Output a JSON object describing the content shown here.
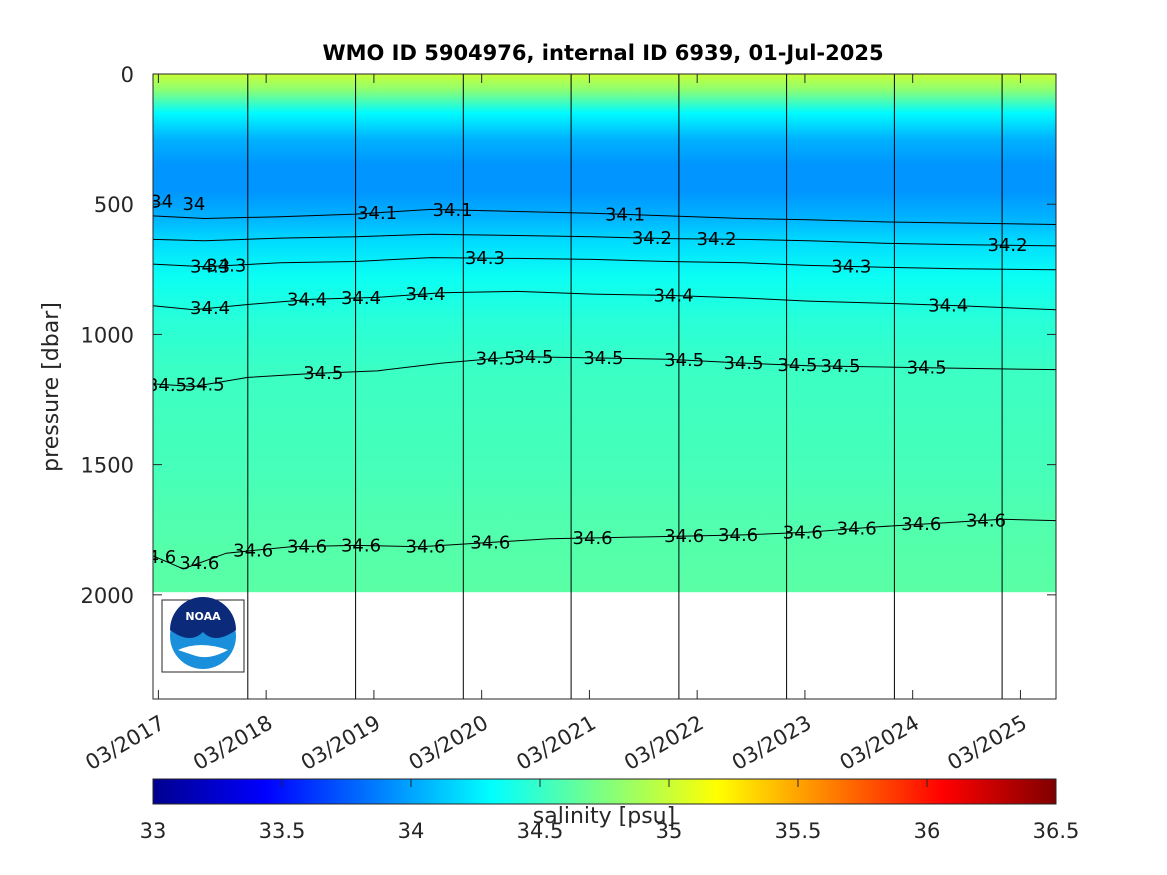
{
  "chart_data": {
    "type": "heatmap",
    "title": "WMO ID 5904976, internal ID 6939, 01-Jul-2025",
    "xlabel": "",
    "ylabel": "pressure [dbar]",
    "x_tick_labels": [
      "03/2017",
      "03/2018",
      "03/2019",
      "03/2020",
      "03/2021",
      "03/2022",
      "03/2023",
      "03/2024",
      "03/2025"
    ],
    "x_ticks_years": [
      2017.17,
      2018.17,
      2019.17,
      2020.17,
      2021.17,
      2022.17,
      2023.17,
      2024.17,
      2025.17
    ],
    "xlim": [
      2017.12,
      2025.5
    ],
    "y_tick_labels": [
      "0",
      "500",
      "1000",
      "1500",
      "2000"
    ],
    "y_ticks": [
      0,
      500,
      1000,
      1500,
      2000
    ],
    "ylim": [
      0,
      2400
    ],
    "y_reversed": true,
    "colorbar": {
      "label": "salinity [psu]",
      "range": [
        33,
        36.5
      ],
      "ticks": [
        33,
        33.5,
        34,
        34.5,
        35,
        35.5,
        36,
        36.5
      ],
      "tick_labels": [
        "33",
        "33.5",
        "34",
        "34.5",
        "35",
        "35.5",
        "36",
        "36.5"
      ],
      "colormap": "jet"
    },
    "max_profile_pressure": 1990,
    "profile_markers_years": [
      2018.0,
      2019.0,
      2020.0,
      2021.0,
      2022.0,
      2023.0,
      2024.0,
      2025.0
    ],
    "salinity_profile": [
      {
        "p": 0,
        "s": 35.0
      },
      {
        "p": 60,
        "s": 34.8
      },
      {
        "p": 150,
        "s": 34.3
      },
      {
        "p": 250,
        "s": 34.05
      },
      {
        "p": 350,
        "s": 33.95
      },
      {
        "p": 450,
        "s": 33.95
      },
      {
        "p": 550,
        "s": 34.05
      },
      {
        "p": 650,
        "s": 34.2
      },
      {
        "p": 780,
        "s": 34.35
      },
      {
        "p": 950,
        "s": 34.45
      },
      {
        "p": 1150,
        "s": 34.52
      },
      {
        "p": 1500,
        "s": 34.55
      },
      {
        "p": 1800,
        "s": 34.6
      },
      {
        "p": 2000,
        "s": 34.62
      }
    ],
    "contours": [
      {
        "level": "34.1",
        "points": [
          [
            2017.12,
            545
          ],
          [
            2017.6,
            555
          ],
          [
            2018.3,
            548
          ],
          [
            2019.0,
            538
          ],
          [
            2019.7,
            520
          ],
          [
            2020.5,
            528
          ],
          [
            2021.2,
            535
          ],
          [
            2021.9,
            545
          ],
          [
            2022.6,
            555
          ],
          [
            2023.2,
            560
          ],
          [
            2023.9,
            568
          ],
          [
            2024.6,
            572
          ],
          [
            2025.5,
            578
          ]
        ]
      },
      {
        "level": "34.2",
        "points": [
          [
            2017.12,
            635
          ],
          [
            2017.6,
            640
          ],
          [
            2018.3,
            630
          ],
          [
            2019.0,
            625
          ],
          [
            2019.7,
            615
          ],
          [
            2020.5,
            620
          ],
          [
            2021.2,
            625
          ],
          [
            2021.9,
            632
          ],
          [
            2022.6,
            635
          ],
          [
            2023.2,
            640
          ],
          [
            2023.9,
            650
          ],
          [
            2024.6,
            655
          ],
          [
            2025.5,
            660
          ]
        ]
      },
      {
        "level": "34.3",
        "points": [
          [
            2017.12,
            730
          ],
          [
            2017.6,
            740
          ],
          [
            2018.3,
            725
          ],
          [
            2019.0,
            720
          ],
          [
            2019.7,
            705
          ],
          [
            2020.5,
            708
          ],
          [
            2021.2,
            712
          ],
          [
            2021.9,
            720
          ],
          [
            2022.6,
            725
          ],
          [
            2023.2,
            735
          ],
          [
            2023.9,
            742
          ],
          [
            2024.6,
            748
          ],
          [
            2025.5,
            752
          ]
        ]
      },
      {
        "level": "34.4",
        "points": [
          [
            2017.12,
            890
          ],
          [
            2017.5,
            905
          ],
          [
            2018.0,
            885
          ],
          [
            2018.6,
            865
          ],
          [
            2019.2,
            858
          ],
          [
            2019.8,
            840
          ],
          [
            2020.5,
            835
          ],
          [
            2021.2,
            845
          ],
          [
            2021.9,
            850
          ],
          [
            2022.6,
            860
          ],
          [
            2023.2,
            872
          ],
          [
            2023.9,
            880
          ],
          [
            2024.6,
            890
          ],
          [
            2025.5,
            905
          ]
        ]
      },
      {
        "level": "34.5",
        "points": [
          [
            2017.12,
            1190
          ],
          [
            2017.5,
            1200
          ],
          [
            2018.0,
            1165
          ],
          [
            2018.6,
            1150
          ],
          [
            2019.2,
            1140
          ],
          [
            2019.8,
            1110
          ],
          [
            2020.5,
            1085
          ],
          [
            2021.2,
            1090
          ],
          [
            2021.9,
            1095
          ],
          [
            2022.6,
            1110
          ],
          [
            2023.2,
            1120
          ],
          [
            2023.9,
            1125
          ],
          [
            2024.6,
            1130
          ],
          [
            2025.5,
            1135
          ]
        ]
      },
      {
        "level": "34.6",
        "points": [
          [
            2017.12,
            1850
          ],
          [
            2017.4,
            1900
          ],
          [
            2017.8,
            1840
          ],
          [
            2018.4,
            1815
          ],
          [
            2019.0,
            1810
          ],
          [
            2019.6,
            1815
          ],
          [
            2020.2,
            1800
          ],
          [
            2020.8,
            1785
          ],
          [
            2021.4,
            1780
          ],
          [
            2022.0,
            1775
          ],
          [
            2022.6,
            1770
          ],
          [
            2023.2,
            1760
          ],
          [
            2023.8,
            1740
          ],
          [
            2024.4,
            1725
          ],
          [
            2025.0,
            1710
          ],
          [
            2025.5,
            1715
          ]
        ]
      }
    ],
    "contour_labels": [
      {
        "text": "34",
        "x": 2017.2,
        "y": 490
      },
      {
        "text": "34",
        "x": 2017.5,
        "y": 500
      },
      {
        "text": "34.1",
        "x": 2019.2,
        "y": 1000
      },
      {
        "text": "34.1",
        "x": 2019.9,
        "y": 1000
      },
      {
        "text": "34.1",
        "x": 2021.5,
        "y": 1000
      },
      {
        "text": "34.2",
        "x": 2021.75,
        "y": 1000
      },
      {
        "text": "34.2",
        "x": 2022.35,
        "y": 1000
      },
      {
        "text": "34.2",
        "x": 2025.05,
        "y": 1000
      },
      {
        "text": "34.3",
        "x": 2017.8,
        "y": 1000
      },
      {
        "text": "34.3",
        "x": 2017.65,
        "y": 1000
      },
      {
        "text": "34.3",
        "x": 2020.2,
        "y": 1000
      },
      {
        "text": "34.3",
        "x": 2023.6,
        "y": 1000
      },
      {
        "text": "34.4",
        "x": 2017.65,
        "y": 1000
      },
      {
        "text": "34.4",
        "x": 2018.55,
        "y": 1000
      },
      {
        "text": "34.4",
        "x": 2019.05,
        "y": 1000
      },
      {
        "text": "34.4",
        "x": 2019.65,
        "y": 1000
      },
      {
        "text": "34.4",
        "x": 2021.95,
        "y": 1000
      },
      {
        "text": "34.4",
        "x": 2024.5,
        "y": 1000
      },
      {
        "text": "34.5",
        "x": 2017.25,
        "y": 1000
      },
      {
        "text": "34.5",
        "x": 2017.6,
        "y": 1000
      },
      {
        "text": "34.5",
        "x": 2018.7,
        "y": 1000
      },
      {
        "text": "34.5",
        "x": 2020.3,
        "y": 1000
      },
      {
        "text": "34.5",
        "x": 2020.65,
        "y": 1000
      },
      {
        "text": "34.5",
        "x": 2021.3,
        "y": 1000
      },
      {
        "text": "34.5",
        "x": 2022.05,
        "y": 1000
      },
      {
        "text": "34.5",
        "x": 2022.6,
        "y": 1000
      },
      {
        "text": "34.5",
        "x": 2023.1,
        "y": 1000
      },
      {
        "text": "34.5",
        "x": 2023.5,
        "y": 1000
      },
      {
        "text": "34.5",
        "x": 2024.3,
        "y": 1000
      },
      {
        "text": "34.6",
        "x": 2017.15,
        "y": 1000
      },
      {
        "text": "34.6",
        "x": 2017.55,
        "y": 1000
      },
      {
        "text": "34.6",
        "x": 2018.05,
        "y": 1000
      },
      {
        "text": "34.6",
        "x": 2018.55,
        "y": 1000
      },
      {
        "text": "34.6",
        "x": 2019.05,
        "y": 1000
      },
      {
        "text": "34.6",
        "x": 2019.65,
        "y": 1000
      },
      {
        "text": "34.6",
        "x": 2020.25,
        "y": 1000
      },
      {
        "text": "34.6",
        "x": 2021.2,
        "y": 1000
      },
      {
        "text": "34.6",
        "x": 2022.05,
        "y": 1000
      },
      {
        "text": "34.6",
        "x": 2022.55,
        "y": 1000
      },
      {
        "text": "34.6",
        "x": 2023.15,
        "y": 1000
      },
      {
        "text": "34.6",
        "x": 2023.65,
        "y": 1000
      },
      {
        "text": "34.6",
        "x": 2024.25,
        "y": 1000
      },
      {
        "text": "34.6",
        "x": 2024.85,
        "y": 1000
      }
    ]
  },
  "logo": {
    "text": "NOAA"
  }
}
